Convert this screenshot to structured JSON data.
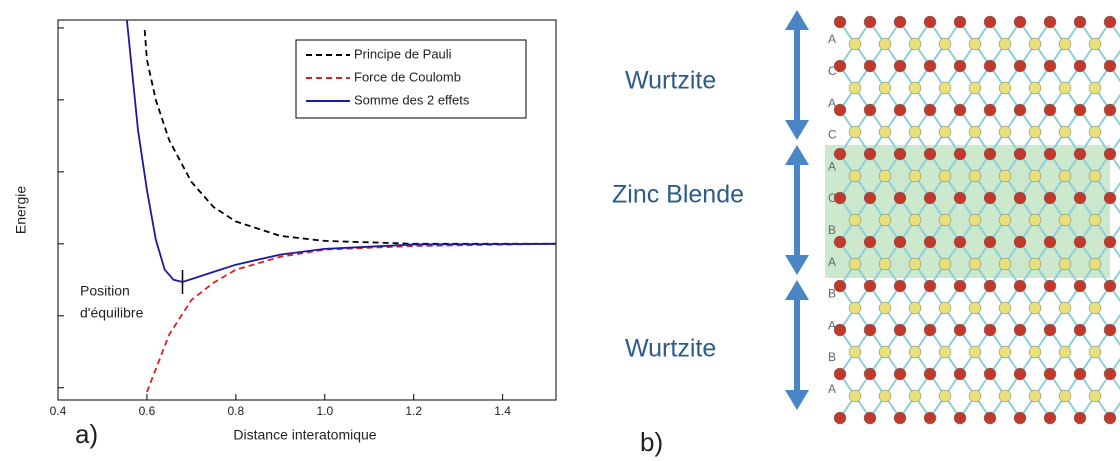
{
  "chart_data": {
    "type": "line",
    "xlabel": "Distance interatomique",
    "ylabel": "Energie",
    "xlim": [
      0.4,
      1.52
    ],
    "xticks": [
      0.4,
      0.6,
      0.8,
      1.0,
      1.2,
      1.4
    ],
    "ylim": [
      -2.17,
      3.11
    ],
    "yticks": [
      -2,
      -1,
      0,
      1,
      2,
      3
    ],
    "legend": "upper right",
    "series": [
      {
        "name": "Principe de Pauli",
        "color": "#000000",
        "dash": true,
        "x": [
          0.595,
          0.6,
          0.62,
          0.65,
          0.7,
          0.75,
          0.8,
          0.9,
          1.0,
          1.2,
          1.52
        ],
        "values": [
          2.97,
          2.56,
          2.0,
          1.44,
          0.86,
          0.51,
          0.31,
          0.11,
          0.04,
          0,
          0
        ]
      },
      {
        "name": "Force de Coulomb",
        "color": "#e02020",
        "dash": true,
        "x": [
          0.6,
          0.65,
          0.7,
          0.75,
          0.8,
          0.9,
          1.0,
          1.2,
          1.52
        ],
        "values": [
          -2.06,
          -1.26,
          -0.78,
          -0.54,
          -0.36,
          -0.18,
          -0.08,
          -0.03,
          0
        ]
      },
      {
        "name": "Somme des 2 effets",
        "color": "#1a1aa0",
        "dash": false,
        "x": [
          0.555,
          0.58,
          0.6,
          0.62,
          0.64,
          0.66,
          0.68,
          0.7,
          0.75,
          0.8,
          0.9,
          1.0,
          1.2,
          1.52
        ],
        "values": [
          3.11,
          1.58,
          0.75,
          0.06,
          -0.36,
          -0.5,
          -0.53,
          -0.49,
          -0.39,
          -0.29,
          -0.15,
          -0.07,
          -0.01,
          0
        ]
      }
    ],
    "annotation": {
      "text": [
        "Position",
        "d'équilibre"
      ],
      "x": 0.68,
      "y": -0.53
    },
    "panel_label": "a)"
  },
  "diagram": {
    "panel_label": "b)",
    "phases": [
      "Wurtzite",
      "Zinc Blende",
      "Wurtzite"
    ],
    "stacking": [
      "A",
      "C",
      "A",
      "C",
      "A",
      "C",
      "B",
      "A",
      "B",
      "A",
      "B",
      "A"
    ]
  }
}
